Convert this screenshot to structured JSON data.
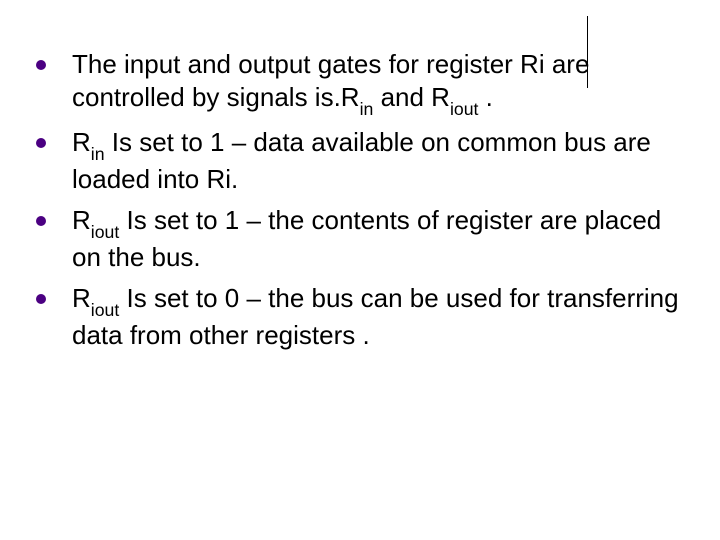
{
  "slide": {
    "bullet_color": "#4b0082",
    "text_color": "#000000",
    "background_color": "#ffffff",
    "font_family": "Arial",
    "font_size_pt": 26,
    "items": [
      {
        "parts": [
          {
            "t": "The input and output gates for register Ri are controlled by signals is.R"
          },
          {
            "t": "in",
            "sub": true
          },
          {
            "t": " and R"
          },
          {
            "t": "iout",
            "sub": true
          },
          {
            "t": " ."
          }
        ]
      },
      {
        "parts": [
          {
            "t": "R"
          },
          {
            "t": "in",
            "sub": true
          },
          {
            "t": " Is set to 1 – data available on common bus are loaded into Ri."
          }
        ]
      },
      {
        "parts": [
          {
            "t": "R"
          },
          {
            "t": "iout",
            "sub": true
          },
          {
            "t": " Is set to 1 – the contents of register are placed on the bus."
          }
        ]
      },
      {
        "parts": [
          {
            "t": "R"
          },
          {
            "t": "iout",
            "sub": true
          },
          {
            "t": " Is set to 0 – the bus can be used for transferring data from other registers ."
          }
        ]
      }
    ]
  }
}
